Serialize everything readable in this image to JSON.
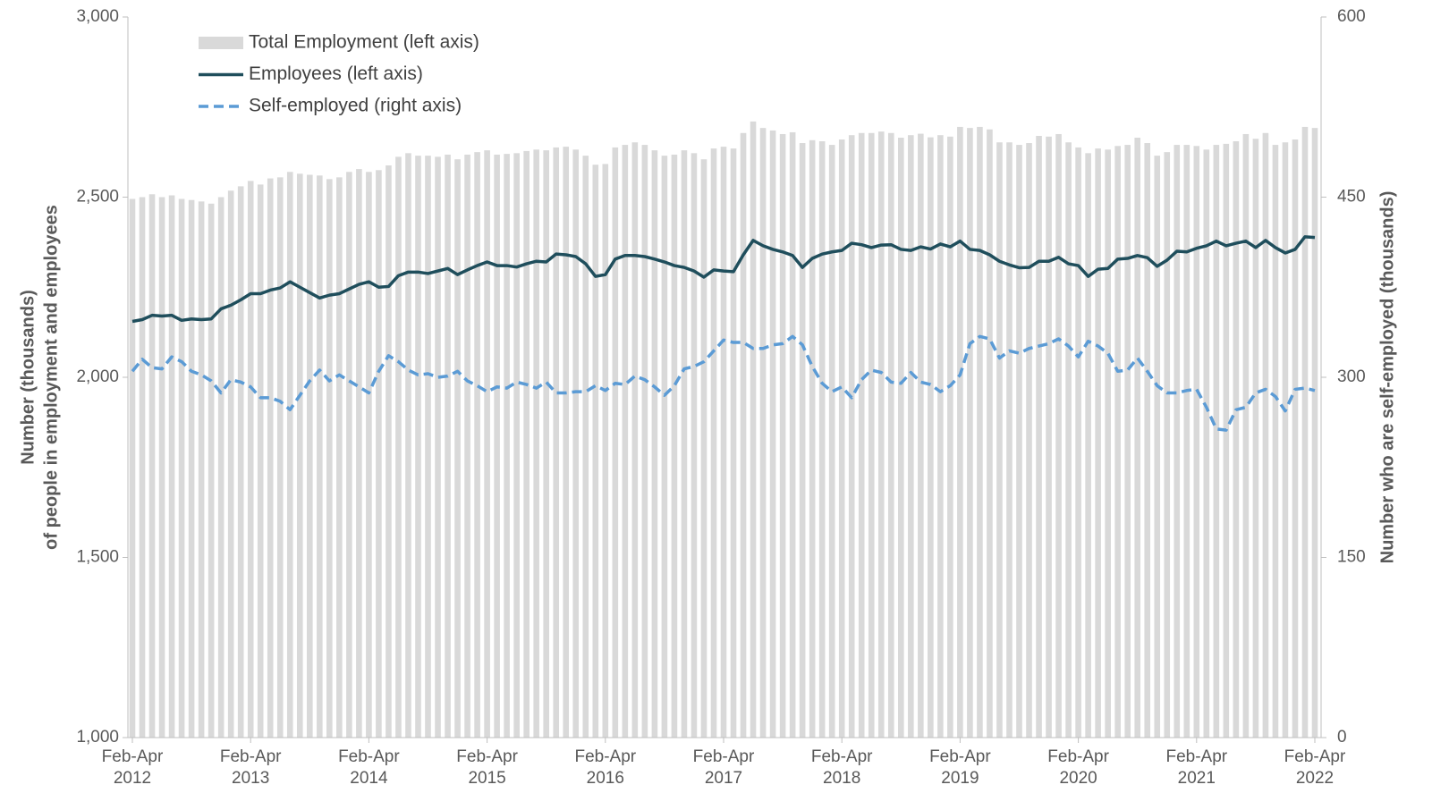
{
  "chart_data": {
    "type": "bar",
    "ylabel": [
      "Number (thousands)",
      "of people in employment and employees"
    ],
    "y2label": "Number who are self-employed (thousands)",
    "categories": [
      "Feb-Apr 2012",
      null,
      null,
      null,
      null,
      null,
      null,
      null,
      null,
      null,
      null,
      null,
      "Feb-Apr 2013",
      null,
      null,
      null,
      null,
      null,
      null,
      null,
      null,
      null,
      null,
      null,
      "Feb-Apr 2014",
      null,
      null,
      null,
      null,
      null,
      null,
      null,
      null,
      null,
      null,
      null,
      "Feb-Apr 2015",
      null,
      null,
      null,
      null,
      null,
      null,
      null,
      null,
      null,
      null,
      null,
      "Feb-Apr 2016",
      null,
      null,
      null,
      null,
      null,
      null,
      null,
      null,
      null,
      null,
      null,
      "Feb-Apr 2017",
      null,
      null,
      null,
      null,
      null,
      null,
      null,
      null,
      null,
      null,
      null,
      "Feb-Apr 2018",
      null,
      null,
      null,
      null,
      null,
      null,
      null,
      null,
      null,
      null,
      null,
      "Feb-Apr 2019",
      null,
      null,
      null,
      null,
      null,
      null,
      null,
      null,
      null,
      null,
      null,
      "Feb-Apr 2020",
      null,
      null,
      null,
      null,
      null,
      null,
      null,
      null,
      null,
      null,
      null,
      "Feb-Apr 2021",
      null,
      null,
      null,
      null,
      null,
      null,
      null,
      null,
      null,
      null,
      null,
      "Feb-Apr 2022"
    ],
    "series": [
      {
        "name": "Total Employment (left axis)",
        "type": "bar",
        "color": "#d9d9d9",
        "values": [
          2495,
          2500,
          2508,
          2500,
          2505,
          2495,
          2492,
          2488,
          2482,
          2500,
          2518,
          2530,
          2545,
          2535,
          2552,
          2555,
          2570,
          2565,
          2562,
          2560,
          2550,
          2555,
          2570,
          2578,
          2570,
          2575,
          2588,
          2612,
          2622,
          2615,
          2615,
          2612,
          2618,
          2605,
          2618,
          2625,
          2630,
          2618,
          2620,
          2622,
          2628,
          2632,
          2630,
          2638,
          2640,
          2632,
          2615,
          2590,
          2592,
          2638,
          2645,
          2652,
          2645,
          2630,
          2615,
          2618,
          2630,
          2622,
          2605,
          2635,
          2640,
          2635,
          2678,
          2710,
          2692,
          2685,
          2675,
          2680,
          2650,
          2658,
          2655,
          2645,
          2660,
          2672,
          2678,
          2678,
          2682,
          2678,
          2665,
          2672,
          2676,
          2666,
          2672,
          2668,
          2695,
          2692,
          2695,
          2688,
          2652,
          2652,
          2645,
          2650,
          2670,
          2668,
          2675,
          2652,
          2638,
          2622,
          2635,
          2632,
          2642,
          2645,
          2665,
          2650,
          2615,
          2625,
          2645,
          2645,
          2642,
          2632,
          2645,
          2648,
          2655,
          2675,
          2662,
          2678,
          2645,
          2652,
          2660,
          2695,
          2692
        ]
      },
      {
        "name": "Employees (left axis)",
        "type": "line",
        "color": "#1f4e5c",
        "values": [
          2155,
          2160,
          2172,
          2170,
          2172,
          2158,
          2162,
          2160,
          2162,
          2190,
          2200,
          2215,
          2232,
          2232,
          2242,
          2248,
          2265,
          2250,
          2235,
          2220,
          2228,
          2232,
          2245,
          2258,
          2265,
          2250,
          2252,
          2282,
          2292,
          2292,
          2288,
          2295,
          2302,
          2285,
          2298,
          2310,
          2320,
          2310,
          2310,
          2306,
          2315,
          2322,
          2320,
          2342,
          2340,
          2335,
          2315,
          2280,
          2285,
          2328,
          2338,
          2338,
          2335,
          2328,
          2320,
          2310,
          2305,
          2295,
          2278,
          2298,
          2295,
          2293,
          2340,
          2380,
          2365,
          2355,
          2348,
          2338,
          2305,
          2330,
          2342,
          2348,
          2352,
          2372,
          2368,
          2360,
          2367,
          2368,
          2355,
          2352,
          2362,
          2356,
          2370,
          2362,
          2378,
          2355,
          2352,
          2340,
          2322,
          2312,
          2304,
          2305,
          2322,
          2322,
          2333,
          2315,
          2310,
          2280,
          2300,
          2302,
          2328,
          2330,
          2338,
          2332,
          2308,
          2325,
          2350,
          2348,
          2358,
          2365,
          2378,
          2365,
          2372,
          2378,
          2360,
          2380,
          2360,
          2345,
          2355,
          2390,
          2388
        ]
      },
      {
        "name": "Self-employed (right axis)",
        "type": "line",
        "axis": "y2",
        "dashed": true,
        "color": "#5b9bd5",
        "values": [
          305,
          315,
          308,
          307,
          317,
          313,
          305,
          302,
          297,
          287,
          298,
          296,
          292,
          283,
          283,
          280,
          273,
          285,
          297,
          306,
          297,
          302,
          297,
          292,
          287,
          305,
          318,
          313,
          306,
          302,
          303,
          300,
          301,
          305,
          297,
          293,
          288,
          292,
          291,
          296,
          294,
          291,
          296,
          287,
          287,
          288,
          288,
          293,
          289,
          295,
          294,
          301,
          298,
          292,
          285,
          293,
          307,
          309,
          313,
          322,
          331,
          329,
          329,
          324,
          324,
          327,
          328,
          334,
          327,
          309,
          295,
          288,
          292,
          283,
          298,
          306,
          304,
          296,
          295,
          304,
          296,
          294,
          288,
          293,
          302,
          328,
          334,
          332,
          316,
          322,
          320,
          324,
          326,
          328,
          332,
          326,
          317,
          330,
          326,
          320,
          305,
          306,
          316,
          305,
          293,
          287,
          287,
          289,
          290,
          275,
          257,
          256,
          273,
          275,
          287,
          290,
          284,
          272,
          290,
          291,
          289
        ]
      }
    ],
    "ylim": [
      1000,
      3000
    ],
    "yticks": [
      {
        "value": 1000,
        "label": "1,000"
      },
      {
        "value": 1500,
        "label": "1,500"
      },
      {
        "value": 2000,
        "label": "2,000"
      },
      {
        "value": 2500,
        "label": "2,500"
      },
      {
        "value": 3000,
        "label": "3,000"
      }
    ],
    "y2lim": [
      0,
      600
    ],
    "y2ticks": [
      0,
      150,
      300,
      450,
      600
    ],
    "legend": "upper left"
  }
}
